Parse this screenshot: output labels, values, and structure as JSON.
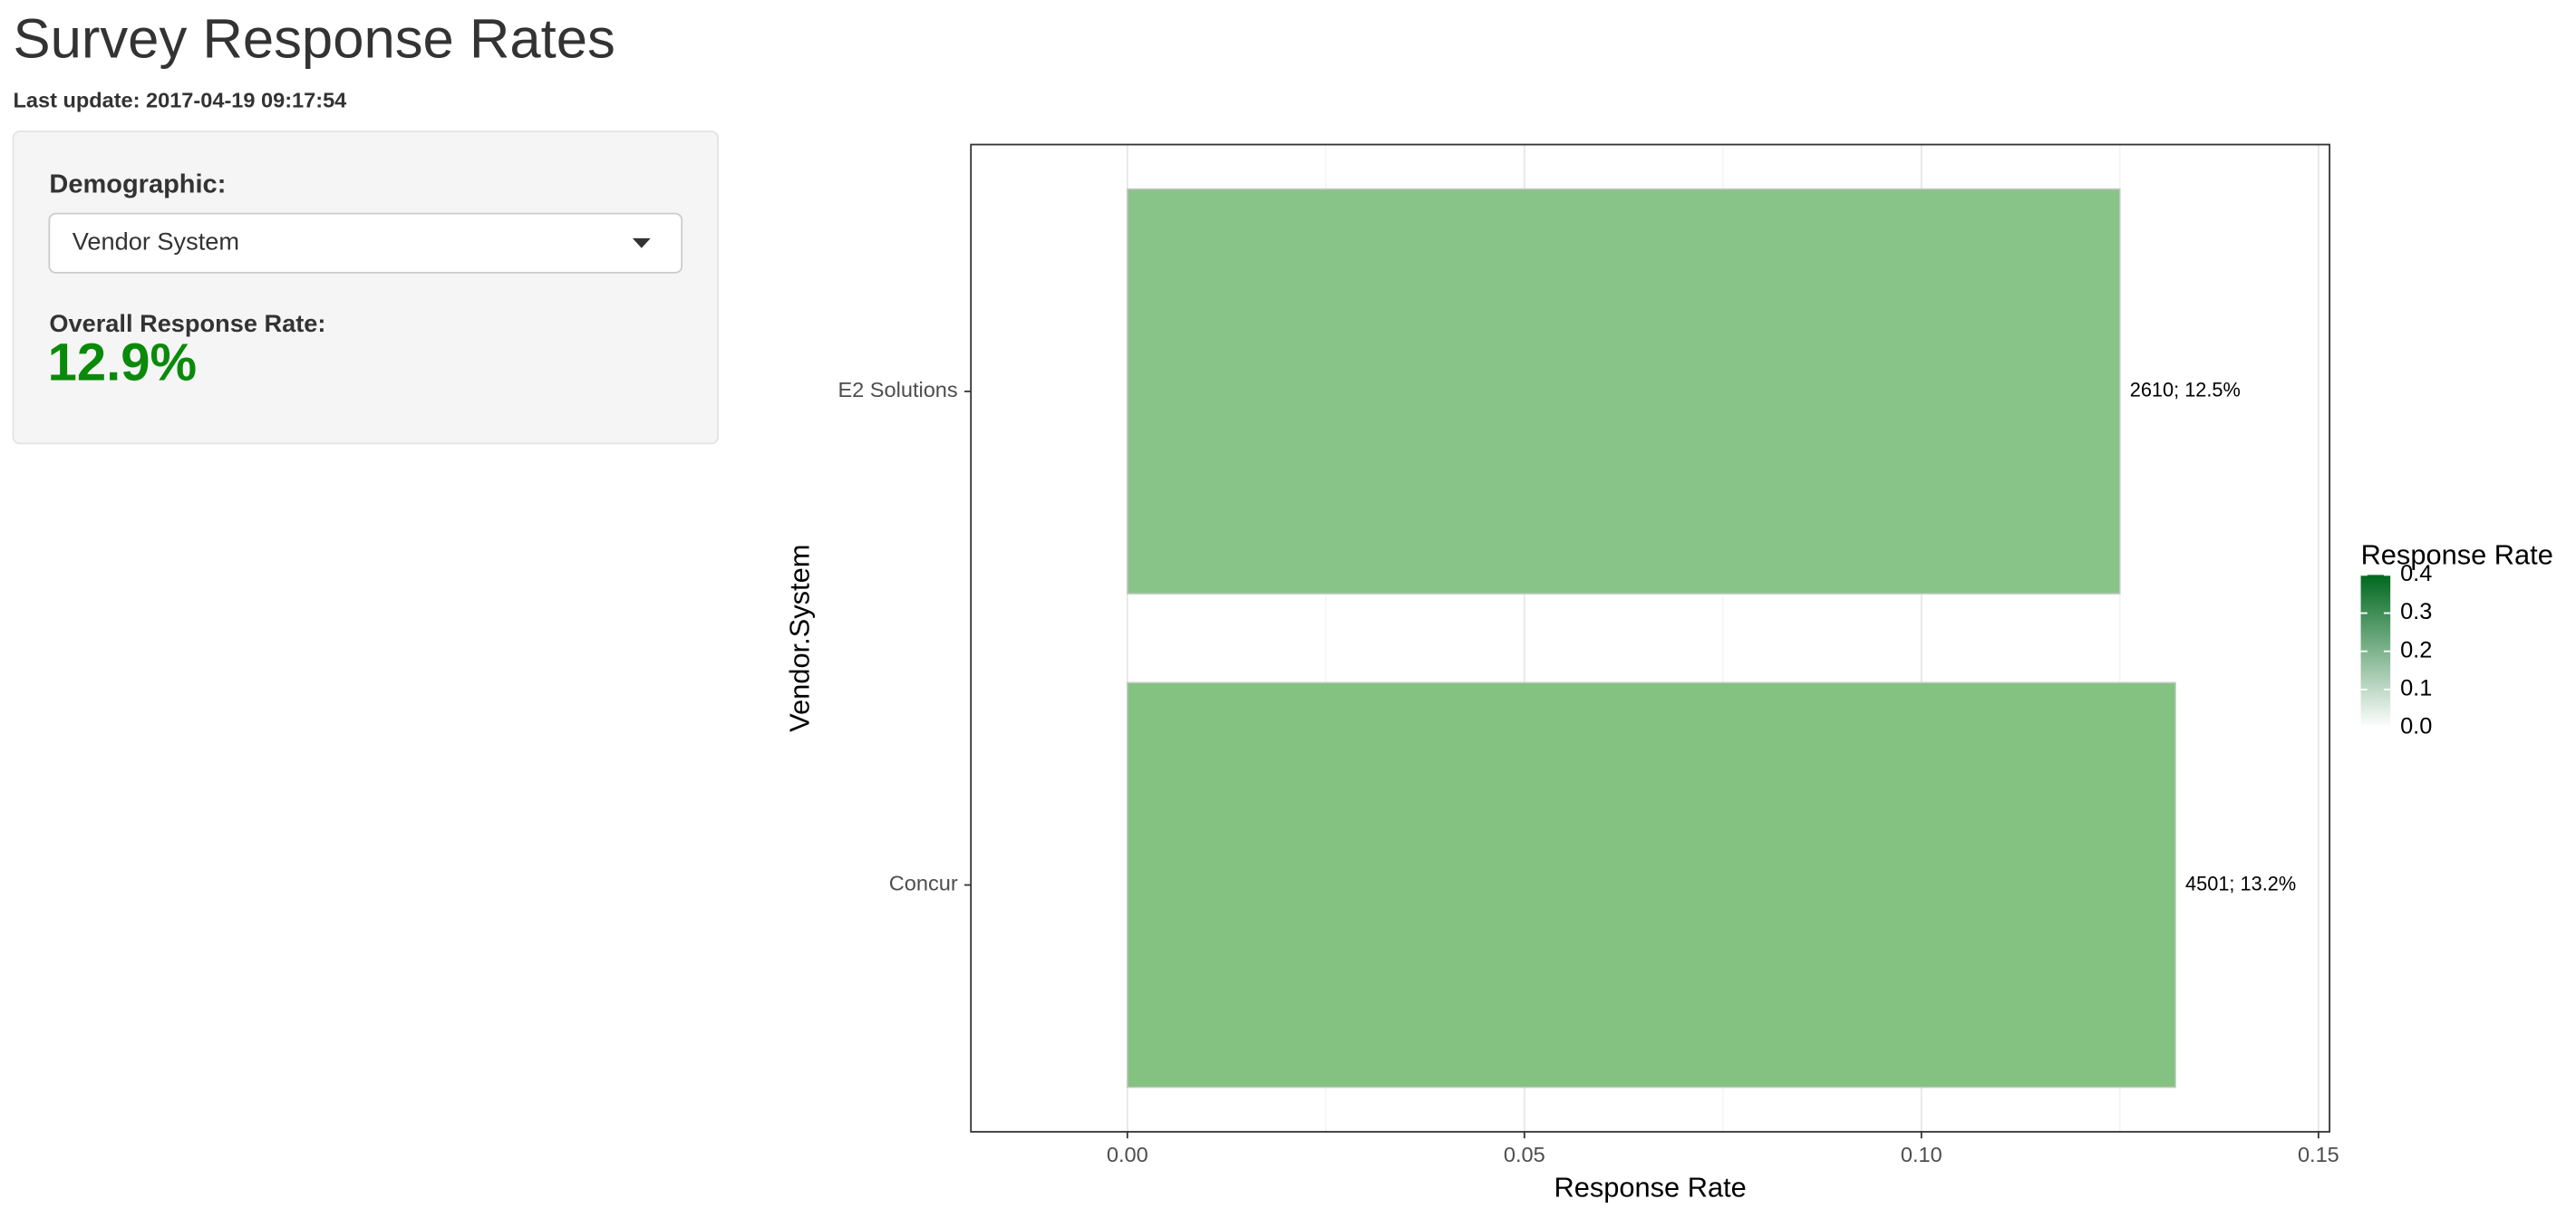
{
  "header": {
    "title": "Survey Response Rates",
    "last_update": "Last update: 2017-04-19 09:17:54"
  },
  "sidebar": {
    "demographic_label": "Demographic:",
    "demographic_selected": "Vendor System",
    "overall_label": "Overall Response Rate:",
    "overall_value": "12.9%"
  },
  "chart_data": {
    "type": "bar",
    "orientation": "horizontal",
    "x_label": "Response Rate",
    "y_label": "Vendor.System",
    "categories": [
      "E2 Solutions",
      "Concur"
    ],
    "values": [
      0.125,
      0.132
    ],
    "value_labels": [
      "2610; 12.5%",
      "4501; 13.2%"
    ],
    "colors": [
      "#88c487",
      "#83c281"
    ],
    "xlim": [
      -0.0197,
      0.1514
    ],
    "xticks": [
      {
        "value": 0,
        "label": "0.00"
      },
      {
        "value": 0.05,
        "label": "0.05"
      },
      {
        "value": 0.1,
        "label": "0.10"
      },
      {
        "value": 0.15,
        "label": "0.15"
      }
    ],
    "grid": true,
    "colorbar": {
      "title": "Response Rate",
      "lim": [
        0,
        0.4
      ],
      "colors": [
        "#ffffff",
        "#00681e"
      ],
      "ticks": [
        {
          "value": 0,
          "label": "0.0"
        },
        {
          "value": 0.1,
          "label": "0.1"
        },
        {
          "value": 0.2,
          "label": "0.2"
        },
        {
          "value": 0.3,
          "label": "0.3"
        },
        {
          "value": 0.4,
          "label": "0.4"
        }
      ]
    }
  }
}
